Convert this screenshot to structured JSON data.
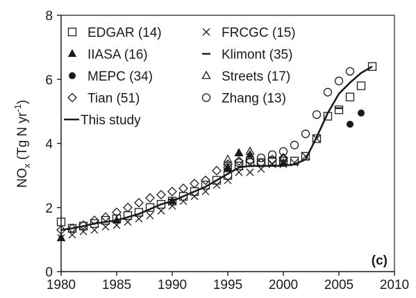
{
  "chart_data": {
    "type": "scatter",
    "title": "",
    "xlabel": "",
    "ylabel": "NOx (Tg N yr-1)",
    "ylabel_parts": {
      "base": "NO",
      "sub": "x",
      "rest1": " (Tg N yr",
      "sup": "-1",
      "rest2": ")"
    },
    "panel_label": "(c)",
    "xlim": [
      1980,
      2010
    ],
    "ylim": [
      0,
      8
    ],
    "xticks": [
      1980,
      1985,
      1990,
      1995,
      2000,
      2005,
      2010
    ],
    "yticks": [
      0,
      2,
      4,
      6,
      8
    ],
    "legend_position": "top-left",
    "grid": false,
    "series": [
      {
        "name": "EDGAR (14)",
        "marker": "open-square",
        "x": [
          1980,
          1981,
          1982,
          1983,
          1984,
          1985,
          1986,
          1987,
          1988,
          1989,
          1990,
          1991,
          1992,
          1993,
          1994,
          1995,
          1996,
          1997,
          1998,
          1999,
          2000,
          2001,
          2002,
          2003,
          2004,
          2005,
          2006,
          2007,
          2008
        ],
        "y": [
          1.55,
          1.35,
          1.42,
          1.5,
          1.6,
          1.65,
          1.75,
          1.85,
          2.0,
          2.1,
          2.2,
          2.35,
          2.5,
          2.7,
          2.85,
          3.0,
          3.3,
          3.4,
          3.4,
          3.45,
          3.45,
          3.45,
          3.6,
          4.15,
          4.85,
          5.05,
          5.45,
          5.8,
          6.4
        ]
      },
      {
        "name": "FRCGC (15)",
        "marker": "x",
        "x": [
          1980,
          1981,
          1982,
          1983,
          1984,
          1985,
          1986,
          1987,
          1988,
          1989,
          1990,
          1991,
          1992,
          1993,
          1994,
          1995,
          1996,
          1997,
          1998,
          1999,
          2000,
          2001,
          2002,
          2003
        ],
        "y": [
          1.05,
          1.15,
          1.25,
          1.3,
          1.4,
          1.45,
          1.55,
          1.65,
          1.75,
          1.9,
          2.05,
          2.2,
          2.35,
          2.5,
          2.7,
          2.85,
          3.1,
          3.1,
          3.2,
          3.35,
          3.35,
          3.4,
          3.6,
          4.15
        ]
      },
      {
        "name": "IIASA (16)",
        "marker": "filled-triangle",
        "x": [
          1980,
          1985,
          1990,
          1995,
          1996,
          1997,
          2000
        ],
        "y": [
          1.05,
          1.6,
          2.2,
          3.25,
          3.7,
          3.65,
          3.4
        ]
      },
      {
        "name": "Klimont (35)",
        "marker": "dash",
        "x": [
          1990,
          1995,
          2000,
          2005
        ],
        "y": [
          2.25,
          3.15,
          3.35,
          5.1
        ]
      },
      {
        "name": "MEPC (34)",
        "marker": "filled-circle",
        "x": [
          2006,
          2007
        ],
        "y": [
          4.6,
          4.95
        ]
      },
      {
        "name": "Streets (17)",
        "marker": "open-triangle",
        "x": [
          1995,
          1996,
          1997,
          2000
        ],
        "y": [
          3.5,
          3.7,
          3.75,
          3.55
        ]
      },
      {
        "name": "Tian (51)",
        "marker": "open-diamond",
        "x": [
          1980,
          1981,
          1982,
          1983,
          1984,
          1985,
          1986,
          1987,
          1988,
          1989,
          1990,
          1991,
          1992,
          1993,
          1994,
          1995,
          1996,
          1997,
          1998,
          1999,
          2000
        ],
        "y": [
          1.3,
          1.35,
          1.45,
          1.6,
          1.7,
          1.85,
          2.0,
          2.15,
          2.3,
          2.4,
          2.5,
          2.6,
          2.75,
          2.85,
          3.15,
          3.35,
          3.45,
          3.45,
          3.4,
          3.5,
          3.55
        ]
      },
      {
        "name": "Zhang (13)",
        "marker": "open-circle",
        "x": [
          1995,
          1996,
          1997,
          1998,
          1999,
          2000,
          2001,
          2002,
          2003,
          2004,
          2005,
          2006
        ],
        "y": [
          3.25,
          3.4,
          3.5,
          3.55,
          3.65,
          3.75,
          3.95,
          4.3,
          4.9,
          5.6,
          5.95,
          6.25
        ]
      },
      {
        "name": "This study",
        "marker": "line",
        "x": [
          1980,
          1981,
          1982,
          1983,
          1984,
          1985,
          1986,
          1987,
          1988,
          1989,
          1990,
          1991,
          1992,
          1993,
          1994,
          1995,
          1996,
          1997,
          1998,
          1999,
          2000,
          2001,
          2002,
          2003,
          2004,
          2005,
          2006,
          2007,
          2008
        ],
        "y": [
          1.3,
          1.35,
          1.42,
          1.5,
          1.55,
          1.6,
          1.7,
          1.8,
          1.95,
          2.1,
          2.2,
          2.35,
          2.5,
          2.65,
          2.85,
          3.05,
          3.25,
          3.3,
          3.3,
          3.3,
          3.3,
          3.35,
          3.5,
          4.2,
          4.95,
          5.55,
          5.9,
          6.2,
          6.4
        ]
      }
    ]
  }
}
